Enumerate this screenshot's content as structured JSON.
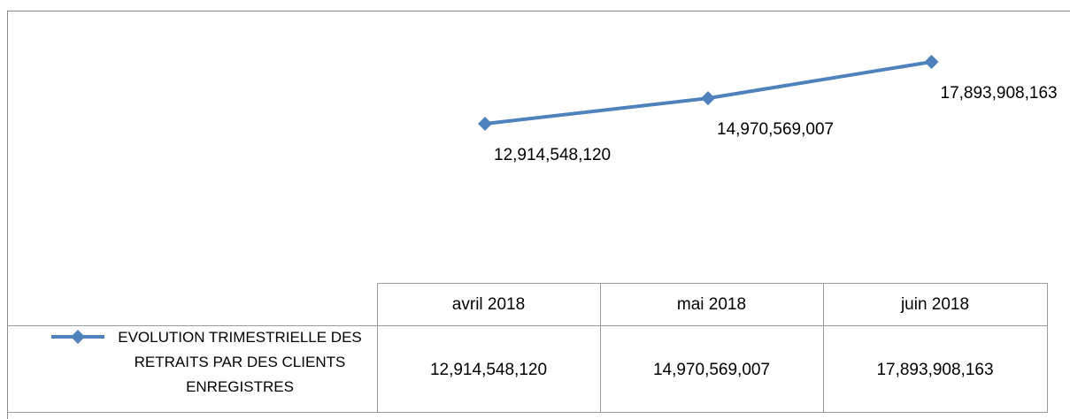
{
  "chart_data": {
    "type": "line",
    "categories": [
      "avril 2018",
      "mai 2018",
      "juin 2018"
    ],
    "series": [
      {
        "name": "EVOLUTION TRIMESTRIELLE DES RETRAITS PAR DES CLIENTS ENREGISTRES",
        "color": "#4f81bd",
        "values": [
          12914548120,
          14970569007,
          17893908163
        ],
        "value_labels": [
          "12,914,548,120",
          "14,970,569,007",
          "17,893,908,163"
        ]
      }
    ]
  }
}
